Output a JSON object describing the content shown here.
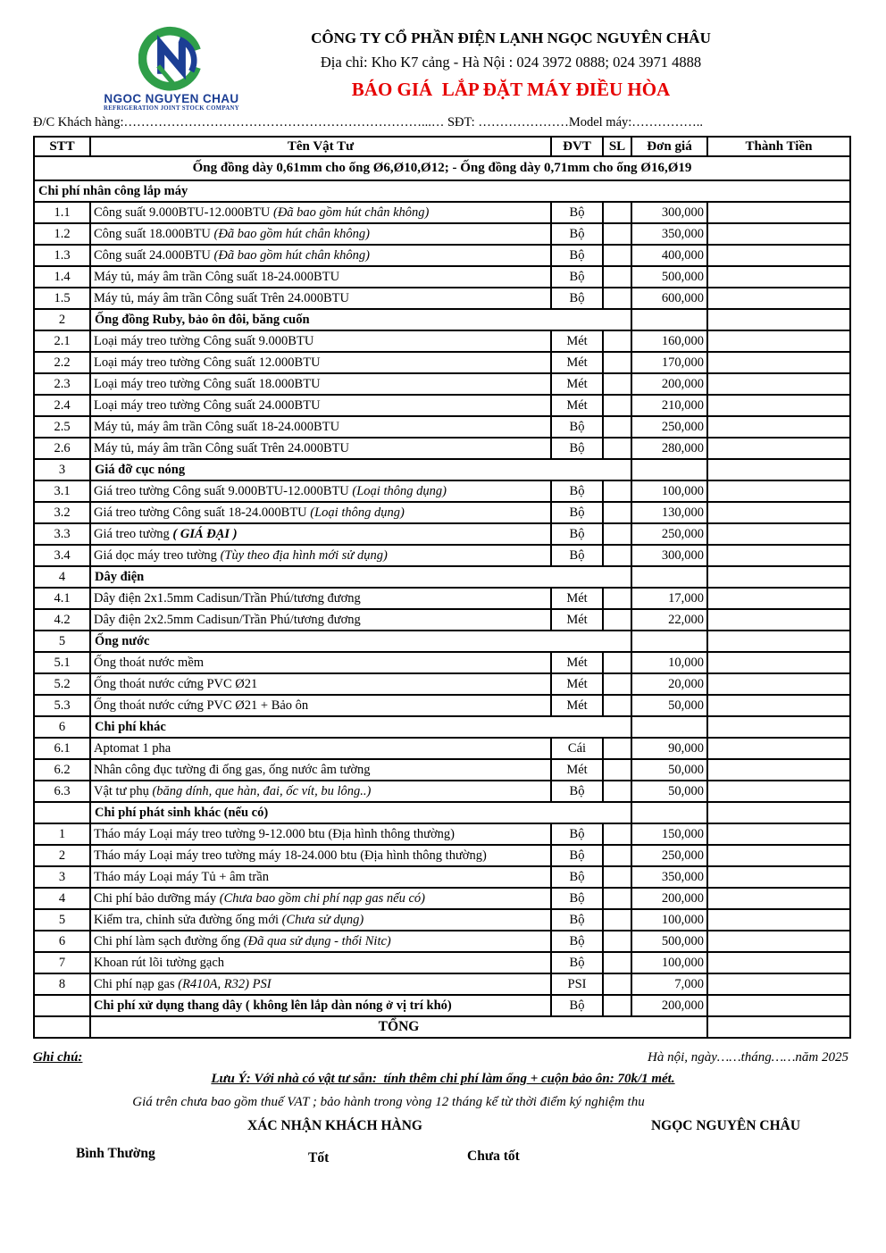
{
  "logo": {
    "name": "NGOC NGUYEN CHAU",
    "subtitle": "REFRIGERATION JOINT STOCK COMPANY",
    "colors": {
      "green": "#2f9e49",
      "navy": "#1c3e94"
    }
  },
  "header": {
    "company": "CÔNG TY CỔ PHẦN ĐIỆN LẠNH NGỌC NGUYÊN CHÂU",
    "address": "Địa chỉ: Kho K7 cảng - Hà Nội : 024 3972 0888; 024 3971 4888",
    "title": "BÁO GIÁ  LẮP ĐẶT MÁY ĐIỀU HÒA",
    "title_color": "#e60000"
  },
  "customer_line": {
    "label1": "Đ/C Khách hàng:",
    "dots1": "……………………………………………………………...…",
    "label2": " SĐT: ",
    "dots2": "…………………",
    "label3": "Model máy:",
    "dots3": "…………….."
  },
  "table": {
    "columns": [
      "STT",
      "Tên Vật Tư",
      "ĐVT",
      "SL",
      "Đơn giá",
      "Thành Tiền"
    ],
    "rows": [
      {
        "type": "banner",
        "name": "Ống đồng dày 0,61mm cho ống Ø6,Ø10,Ø12;  - Ống đồng dày 0,71mm cho ống Ø16,Ø19"
      },
      {
        "type": "sectfull",
        "name": "Chi phí nhân công lắp máy"
      },
      {
        "type": "item",
        "stt": "1.1",
        "name": "Công suất 9.000BTU-12.000BTU ",
        "note": "(Đã bao gồm hút chân không)",
        "unit": "Bộ",
        "qty": "",
        "price": "300,000",
        "total": ""
      },
      {
        "type": "item",
        "stt": "1.2",
        "name": "Công suất 18.000BTU ",
        "note": "(Đã bao gồm hút chân không)",
        "unit": "Bộ",
        "qty": "",
        "price": "350,000",
        "total": ""
      },
      {
        "type": "item",
        "stt": "1.3",
        "name": "Công suất 24.000BTU ",
        "note": "(Đã bao gồm hút chân không)",
        "unit": "Bộ",
        "qty": "",
        "price": "400,000",
        "total": ""
      },
      {
        "type": "item",
        "stt": "1.4",
        "name": "Máy tủ, máy âm trần Công suất 18-24.000BTU",
        "unit": "Bộ",
        "qty": "",
        "price": "500,000",
        "total": ""
      },
      {
        "type": "item",
        "stt": "1.5",
        "name": "Máy tủ, máy âm trần Công suất Trên 24.000BTU",
        "unit": "Bộ",
        "qty": "",
        "price": "600,000",
        "total": ""
      },
      {
        "type": "sect",
        "stt": "2",
        "name": "Ống đồng Ruby, bảo ôn đôi, băng cuốn"
      },
      {
        "type": "item",
        "stt": "2.1",
        "name": "Loại máy treo tường Công suất 9.000BTU",
        "unit": "Mét",
        "qty": "",
        "price": "160,000",
        "total": ""
      },
      {
        "type": "item",
        "stt": "2.2",
        "name": "Loại máy treo tường Công suất 12.000BTU",
        "unit": "Mét",
        "qty": "",
        "price": "170,000",
        "total": ""
      },
      {
        "type": "item",
        "stt": "2.3",
        "name": "Loại máy treo tường Công suất 18.000BTU",
        "unit": "Mét",
        "qty": "",
        "price": "200,000",
        "total": ""
      },
      {
        "type": "item",
        "stt": "2.4",
        "name": "Loại máy treo tường Công suất 24.000BTU",
        "unit": "Mét",
        "qty": "",
        "price": "210,000",
        "total": ""
      },
      {
        "type": "item",
        "stt": "2.5",
        "name": "Máy tủ, máy âm trần Công suất 18-24.000BTU",
        "unit": "Bộ",
        "qty": "",
        "price": "250,000",
        "total": ""
      },
      {
        "type": "item",
        "stt": "2.6",
        "name": "Máy tủ, máy âm trần Công suất Trên 24.000BTU",
        "unit": "Bộ",
        "qty": "",
        "price": "280,000",
        "total": ""
      },
      {
        "type": "sect",
        "stt": "3",
        "name": "Giá đỡ cục nóng"
      },
      {
        "type": "item",
        "stt": "3.1",
        "name": "Giá treo tường Công suất 9.000BTU-12.000BTU ",
        "note": "(Loại thông dụng)",
        "unit": "Bộ",
        "qty": "",
        "price": "100,000",
        "total": ""
      },
      {
        "type": "item",
        "stt": "3.2",
        "name": "Giá treo tường Công suất 18-24.000BTU ",
        "note": "(Loại thông dụng)",
        "unit": "Bộ",
        "qty": "",
        "price": "130,000",
        "total": ""
      },
      {
        "type": "item",
        "stt": "3.3",
        "name": "Giá treo tường ",
        "note": "( GIÁ ĐẠI )",
        "note_bold": true,
        "unit": "Bộ",
        "qty": "",
        "price": "250,000",
        "total": ""
      },
      {
        "type": "item",
        "stt": "3.4",
        "name": "Giá dọc máy treo tường ",
        "note": "(Tùy theo địa hình mới sử dụng)",
        "unit": "Bộ",
        "qty": "",
        "price": "300,000",
        "total": ""
      },
      {
        "type": "sect",
        "stt": "4",
        "name": "Dây điện"
      },
      {
        "type": "item",
        "stt": "4.1",
        "name": "Dây điện 2x1.5mm Cadisun/Trần Phú/tương đương",
        "unit": "Mét",
        "qty": "",
        "price": "17,000",
        "total": ""
      },
      {
        "type": "item",
        "stt": "4.2",
        "name": "Dây điện 2x2.5mm Cadisun/Trần Phú/tương đương",
        "unit": "Mét",
        "qty": "",
        "price": "22,000",
        "total": ""
      },
      {
        "type": "sect",
        "stt": "5",
        "name": "Ống nước"
      },
      {
        "type": "item",
        "stt": "5.1",
        "name": "Ống thoát nước mềm",
        "unit": "Mét",
        "qty": "",
        "price": "10,000",
        "total": ""
      },
      {
        "type": "item",
        "stt": "5.2",
        "name": "Ống thoát nước cứng PVC Ø21",
        "unit": "Mét",
        "qty": "",
        "price": "20,000",
        "total": ""
      },
      {
        "type": "item",
        "stt": "5.3",
        "name": "Ống thoát nước cứng PVC Ø21 + Bảo ôn",
        "unit": "Mét",
        "qty": "",
        "price": "50,000",
        "total": ""
      },
      {
        "type": "sect",
        "stt": "6",
        "name": "Chi phí khác"
      },
      {
        "type": "item",
        "stt": "6.1",
        "name": "Aptomat 1 pha",
        "unit": "Cái",
        "qty": "",
        "price": "90,000",
        "total": ""
      },
      {
        "type": "item",
        "stt": "6.2",
        "name": "Nhân công đục tường đi ống gas, ống nước âm tường",
        "unit": "Mét",
        "qty": "",
        "price": "50,000",
        "total": ""
      },
      {
        "type": "item",
        "stt": "6.3",
        "name": "Vật tư phụ ",
        "note": "(băng dính, que hàn, đai, ốc vít, bu lông..)",
        "unit": "Bộ",
        "qty": "",
        "price": "50,000",
        "total": ""
      },
      {
        "type": "sect",
        "stt": "",
        "name": "Chi phí phát sinh khác (nếu có)"
      },
      {
        "type": "item",
        "stt": "1",
        "name": "Tháo máy Loại máy treo tường 9-12.000  btu (Địa hình thông thường)",
        "unit": "Bộ",
        "qty": "",
        "price": "150,000",
        "total": ""
      },
      {
        "type": "item",
        "stt": "2",
        "name": "Tháo máy Loại máy treo tường máy 18-24.000 btu (Địa hình thông thường)",
        "unit": "Bộ",
        "qty": "",
        "price": "250,000",
        "total": ""
      },
      {
        "type": "item",
        "stt": "3",
        "name": "Tháo máy Loại máy Tủ + âm trần",
        "unit": "Bộ",
        "qty": "",
        "price": "350,000",
        "total": ""
      },
      {
        "type": "item",
        "stt": "4",
        "name": "Chi phí bảo dưỡng máy ",
        "note": "(Chưa bao gồm chi phí nạp gas nếu có)",
        "unit": "Bộ",
        "qty": "",
        "price": "200,000",
        "total": ""
      },
      {
        "type": "item",
        "stt": "5",
        "name": "Kiểm tra, chỉnh sửa đường ống mới ",
        "note": "(Chưa sử dụng)",
        "unit": "Bộ",
        "qty": "",
        "price": "100,000",
        "total": ""
      },
      {
        "type": "item",
        "stt": "6",
        "name": "Chi phí làm sạch đường ống ",
        "note": "(Đã qua sử dụng - thổi Nitc)",
        "unit": "Bộ",
        "qty": "",
        "price": "500,000",
        "total": ""
      },
      {
        "type": "item",
        "stt": "7",
        "name": "Khoan rút lõi tường gạch",
        "unit": "Bộ",
        "qty": "",
        "price": "100,000",
        "total": ""
      },
      {
        "type": "item",
        "stt": "8",
        "name": "Chi phí nạp gas ",
        "note": "(R410A, R32) PSI",
        "unit": "PSI",
        "qty": "",
        "price": "7,000",
        "total": ""
      },
      {
        "type": "item",
        "stt": "",
        "name": "Chi phí xử dụng thang dây ( không lên lắp dàn nóng ở vị trí khó)",
        "name_bold": true,
        "unit": "Bộ",
        "qty": "",
        "price": "200,000",
        "total": ""
      },
      {
        "type": "total",
        "name": "TỔNG"
      }
    ]
  },
  "footer": {
    "note_label": "Ghi chú:",
    "date_line": "Hà nội, ngày……tháng……năm 2025",
    "warning": "Lưu Ý: Với nhà có vật tư sẵn:  tính thêm chi phí làm ống + cuộn bảo ôn: 70k/1 mét.",
    "vat_line": "Giá trên chưa bao gồm thuế VAT ; bảo hành trong vòng 12 tháng kể từ thời điểm ký nghiệm thu",
    "sign_customer": "XÁC NHẬN KHÁCH HÀNG",
    "sign_company": "NGỌC NGUYÊN CHÂU",
    "rating_normal": "Bình Thường",
    "rating_good": "Tốt",
    "rating_bad": "Chưa tốt"
  }
}
